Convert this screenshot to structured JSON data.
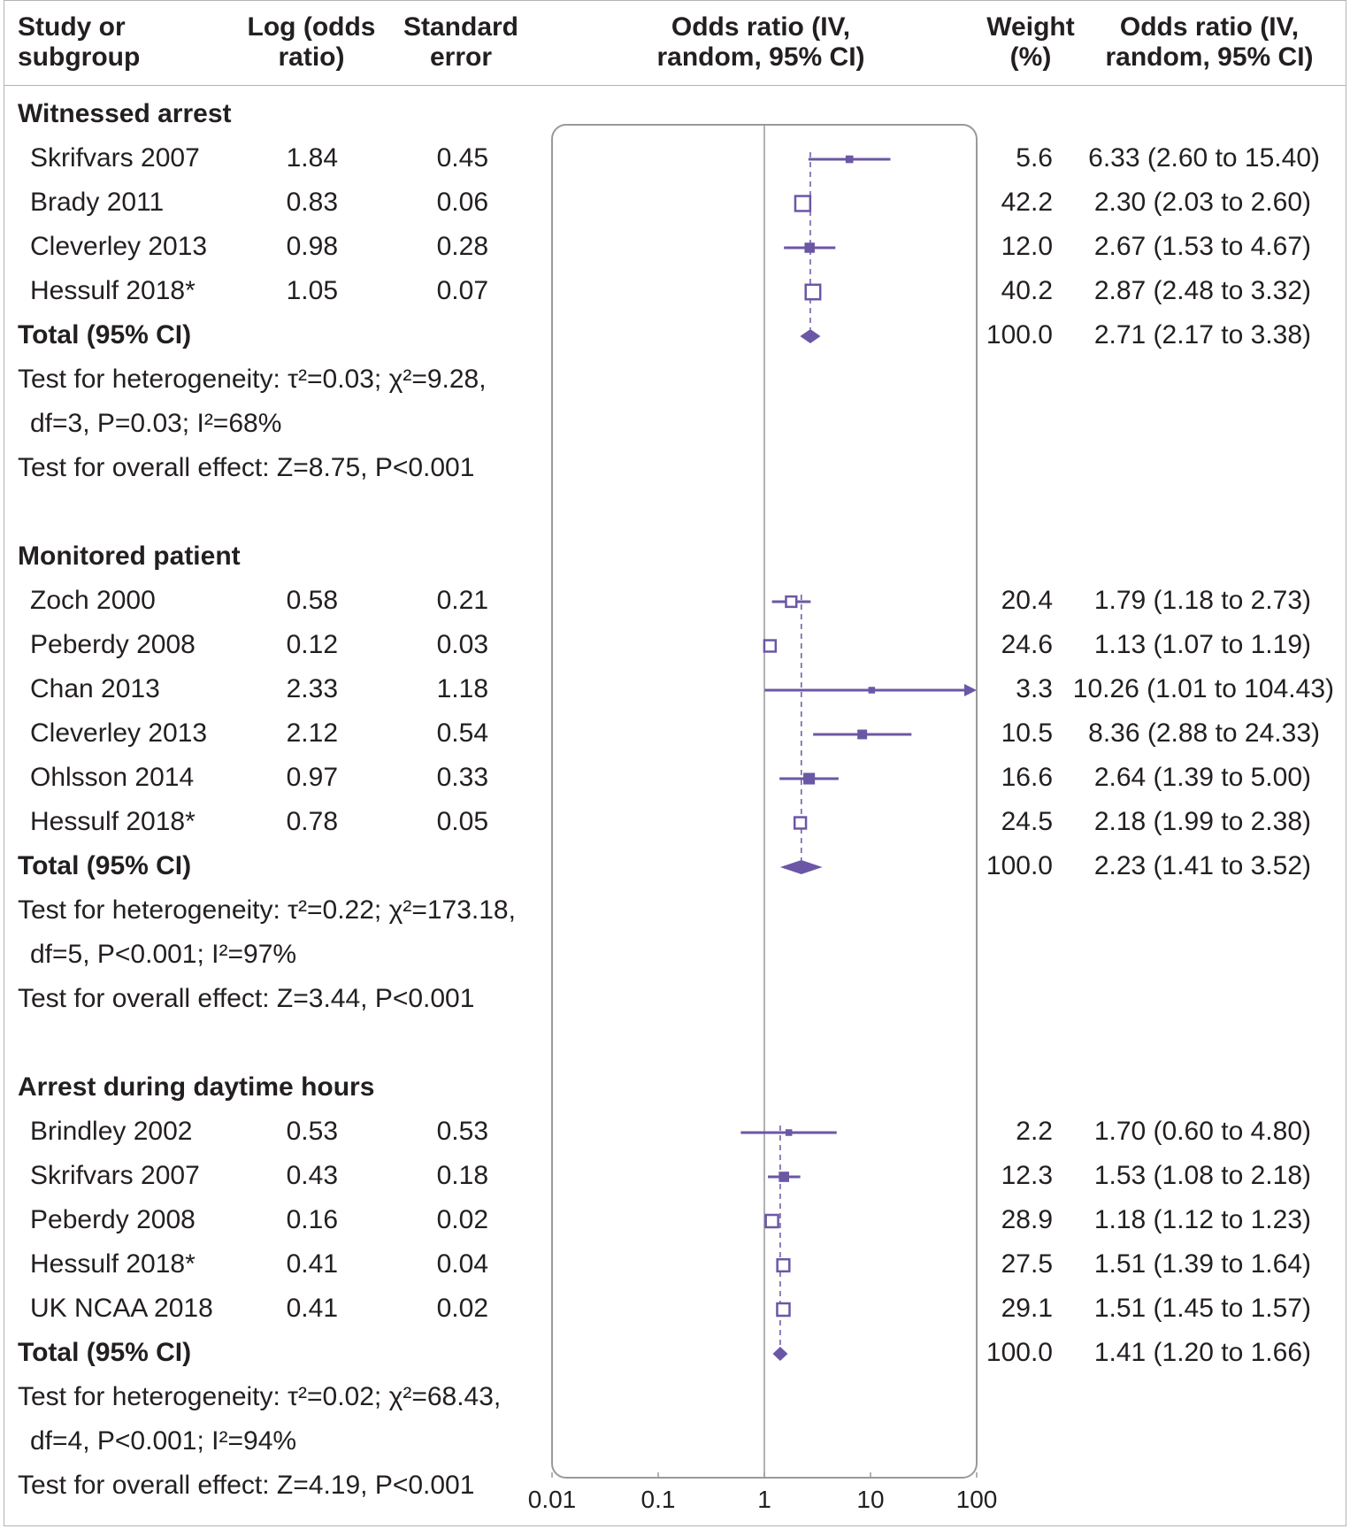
{
  "header": {
    "study_col": "Study or subgroup",
    "log_col": "Log (odds ratio)",
    "se_col": "Standard error",
    "plot_col": "Odds ratio (IV, random, 95% CI)",
    "weight_col": "Weight (%)",
    "or_col": "Odds ratio (IV, random, 95% CI)"
  },
  "groups": [
    {
      "title": "Witnessed arrest",
      "studies": [
        {
          "name": "Skrifvars 2007",
          "log": "1.84",
          "se": "0.45",
          "weight": "5.6",
          "ci": "6.33 (2.60 to 15.40)"
        },
        {
          "name": "Brady 2011",
          "log": "0.83",
          "se": "0.06",
          "weight": "42.2",
          "ci": "2.30 (2.03 to 2.60)"
        },
        {
          "name": "Cleverley 2013",
          "log": "0.98",
          "se": "0.28",
          "weight": "12.0",
          "ci": "2.67 (1.53 to 4.67)"
        },
        {
          "name": "Hessulf 2018*",
          "log": "1.05",
          "se": "0.07",
          "weight": "40.2",
          "ci": "2.87 (2.48 to 3.32)"
        }
      ],
      "total": {
        "label": "Total (95% CI)",
        "weight": "100.0",
        "ci": "2.71 (2.17 to 3.38)"
      },
      "heterogeneity_1": "Test for heterogeneity: τ²=0.03; χ²=9.28,",
      "heterogeneity_2": "df=3, P=0.03; I²=68%",
      "overall": "Test for overall effect: Z=8.75, P<0.001"
    },
    {
      "title": "Monitored patient",
      "studies": [
        {
          "name": "Zoch 2000",
          "log": "0.58",
          "se": "0.21",
          "weight": "20.4",
          "ci": "1.79 (1.18 to 2.73)"
        },
        {
          "name": "Peberdy 2008",
          "log": "0.12",
          "se": "0.03",
          "weight": "24.6",
          "ci": "1.13 (1.07 to 1.19)"
        },
        {
          "name": "Chan 2013",
          "log": "2.33",
          "se": "1.18",
          "weight": "3.3",
          "ci": "10.26 (1.01 to 104.43)"
        },
        {
          "name": "Cleverley 2013",
          "log": "2.12",
          "se": "0.54",
          "weight": "10.5",
          "ci": "8.36 (2.88 to 24.33)"
        },
        {
          "name": "Ohlsson 2014",
          "log": "0.97",
          "se": "0.33",
          "weight": "16.6",
          "ci": "2.64 (1.39 to 5.00)"
        },
        {
          "name": "Hessulf 2018*",
          "log": "0.78",
          "se": "0.05",
          "weight": "24.5",
          "ci": "2.18 (1.99 to 2.38)"
        }
      ],
      "total": {
        "label": "Total (95% CI)",
        "weight": "100.0",
        "ci": "2.23 (1.41 to 3.52)"
      },
      "heterogeneity_1": "Test for heterogeneity: τ²=0.22; χ²=173.18,",
      "heterogeneity_2": "df=5, P<0.001; I²=97%",
      "overall": "Test for overall effect: Z=3.44, P<0.001"
    },
    {
      "title": "Arrest during daytime hours",
      "studies": [
        {
          "name": "Brindley 2002",
          "log": "0.53",
          "se": "0.53",
          "weight": "2.2",
          "ci": "1.70 (0.60 to 4.80)"
        },
        {
          "name": "Skrifvars 2007",
          "log": "0.43",
          "se": "0.18",
          "weight": "12.3",
          "ci": "1.53 (1.08 to 2.18)"
        },
        {
          "name": "Peberdy 2008",
          "log": "0.16",
          "se": "0.02",
          "weight": "28.9",
          "ci": "1.18 (1.12 to 1.23)"
        },
        {
          "name": "Hessulf 2018*",
          "log": "0.41",
          "se": "0.04",
          "weight": "27.5",
          "ci": "1.51 (1.39 to 1.64)"
        },
        {
          "name": "UK NCAA 2018",
          "log": "0.41",
          "se": "0.02",
          "weight": "29.1",
          "ci": "1.51 (1.45 to 1.57)"
        }
      ],
      "total": {
        "label": "Total (95% CI)",
        "weight": "100.0",
        "ci": "1.41 (1.20 to 1.66)"
      },
      "heterogeneity_1": "Test for heterogeneity: τ²=0.02; χ²=68.43,",
      "heterogeneity_2": "df=4, P<0.001; I²=94%",
      "overall": "Test for overall effect: Z=4.19, P<0.001"
    }
  ],
  "colors": {
    "marker": "#6b57a5",
    "axis": "#999999",
    "text": "#231f20"
  },
  "chart_data": {
    "type": "forest",
    "x_scale": "log",
    "x_range": [
      0.01,
      100
    ],
    "x_ticks": [
      "0.01",
      "0.1",
      "1",
      "10",
      "100"
    ],
    "reference_line": 1,
    "series": [
      {
        "name": "Witnessed arrest",
        "studies": [
          {
            "name": "Skrifvars 2007",
            "or": 6.33,
            "lo": 2.6,
            "hi": 15.4,
            "weight": 5.6
          },
          {
            "name": "Brady 2011",
            "or": 2.3,
            "lo": 2.03,
            "hi": 2.6,
            "weight": 42.2
          },
          {
            "name": "Cleverley 2013",
            "or": 2.67,
            "lo": 1.53,
            "hi": 4.67,
            "weight": 12.0
          },
          {
            "name": "Hessulf 2018*",
            "or": 2.87,
            "lo": 2.48,
            "hi": 3.32,
            "weight": 40.2
          }
        ],
        "total": {
          "or": 2.71,
          "lo": 2.17,
          "hi": 3.38
        }
      },
      {
        "name": "Monitored patient",
        "studies": [
          {
            "name": "Zoch 2000",
            "or": 1.79,
            "lo": 1.18,
            "hi": 2.73,
            "weight": 20.4
          },
          {
            "name": "Peberdy 2008",
            "or": 1.13,
            "lo": 1.07,
            "hi": 1.19,
            "weight": 24.6
          },
          {
            "name": "Chan 2013",
            "or": 10.26,
            "lo": 1.01,
            "hi": 104.43,
            "weight": 3.3
          },
          {
            "name": "Cleverley 2013",
            "or": 8.36,
            "lo": 2.88,
            "hi": 24.33,
            "weight": 10.5
          },
          {
            "name": "Ohlsson 2014",
            "or": 2.64,
            "lo": 1.39,
            "hi": 5.0,
            "weight": 16.6
          },
          {
            "name": "Hessulf 2018*",
            "or": 2.18,
            "lo": 1.99,
            "hi": 2.38,
            "weight": 24.5
          }
        ],
        "total": {
          "or": 2.23,
          "lo": 1.41,
          "hi": 3.52
        }
      },
      {
        "name": "Arrest during daytime hours",
        "studies": [
          {
            "name": "Brindley 2002",
            "or": 1.7,
            "lo": 0.6,
            "hi": 4.8,
            "weight": 2.2
          },
          {
            "name": "Skrifvars 2007",
            "or": 1.53,
            "lo": 1.08,
            "hi": 2.18,
            "weight": 12.3
          },
          {
            "name": "Peberdy 2008",
            "or": 1.18,
            "lo": 1.12,
            "hi": 1.23,
            "weight": 28.9
          },
          {
            "name": "Hessulf 2018*",
            "or": 1.51,
            "lo": 1.39,
            "hi": 1.64,
            "weight": 27.5
          },
          {
            "name": "UK NCAA 2018",
            "or": 1.51,
            "lo": 1.45,
            "hi": 1.57,
            "weight": 29.1
          }
        ],
        "total": {
          "or": 1.41,
          "lo": 1.2,
          "hi": 1.66
        }
      }
    ]
  }
}
